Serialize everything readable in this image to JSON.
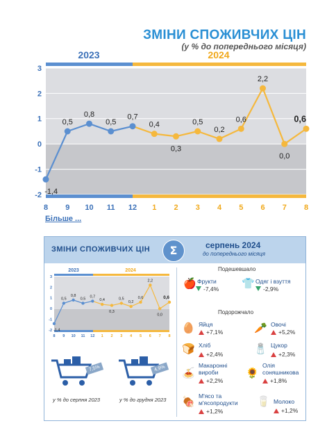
{
  "chart_data": {
    "type": "line",
    "title": "ЗМІНИ СПОЖИВЧИХ ЦІН",
    "subtitle": "(у % до попереднього місяця)",
    "years": [
      "2023",
      "2024"
    ],
    "x": [
      "8",
      "9",
      "10",
      "11",
      "12",
      "1",
      "2",
      "3",
      "4",
      "5",
      "6",
      "7",
      "8"
    ],
    "values": [
      -1.4,
      0.5,
      0.8,
      0.5,
      0.7,
      0.4,
      0.3,
      0.5,
      0.2,
      0.6,
      2.2,
      0.0,
      0.6
    ],
    "value_labels": [
      "-1,4",
      "0,5",
      "0,8",
      "0,5",
      "0,7",
      "0,4",
      "0,3",
      "0,5",
      "0,2",
      "0,6",
      "2,2",
      "0,0",
      "0,6"
    ],
    "yticks": [
      "3",
      "2",
      "1",
      "0",
      "-1",
      "-2"
    ],
    "ylim": [
      -2,
      3
    ],
    "grid": true,
    "colors": {
      "y2023": "#5b8fd0",
      "y2024": "#f5b83d",
      "band": "#dcdde1",
      "band_dark": "#c6c7cb"
    }
  },
  "more_link": "Більше ...",
  "card": {
    "title": "ЗМІНИ СПОЖИВЧИХ ЦІН",
    "date": "серпень 2024",
    "date_sub": "до попереднього місяця",
    "cheaper_title": "Подешевшало",
    "cheaper": [
      {
        "name": "Фрукти",
        "value": "-7,4%",
        "icon": "fruit-icon"
      },
      {
        "name": "Одяг і взуття",
        "value": "-2,9%",
        "icon": "clothes-icon"
      }
    ],
    "pricier_title": "Подорожчало",
    "pricier": [
      {
        "name": "Яйця",
        "value": "+7,1%",
        "icon": "eggs-icon"
      },
      {
        "name": "Овочі",
        "value": "+5,2%",
        "icon": "vegetables-icon"
      },
      {
        "name": "Хліб",
        "value": "+2,4%",
        "icon": "bread-icon"
      },
      {
        "name": "Цукор",
        "value": "+2,3%",
        "icon": "sugar-icon"
      },
      {
        "name": "Макаронні\nвироби",
        "value": "+2,2%",
        "icon": "pasta-icon"
      },
      {
        "name": "Олія\nсоняшникова",
        "value": "+1,8%",
        "icon": "oil-icon"
      },
      {
        "name": "М'ясо та\nм'ясопродукти",
        "value": "+1,2%",
        "icon": "meat-icon"
      },
      {
        "name": "Молоко",
        "value": "+1,2%",
        "icon": "milk-icon"
      }
    ],
    "carts": [
      {
        "tag": "7,5%",
        "caption": "у % до серпня 2023"
      },
      {
        "tag": "4,9%",
        "caption": "у % до грудня 2023"
      }
    ]
  }
}
